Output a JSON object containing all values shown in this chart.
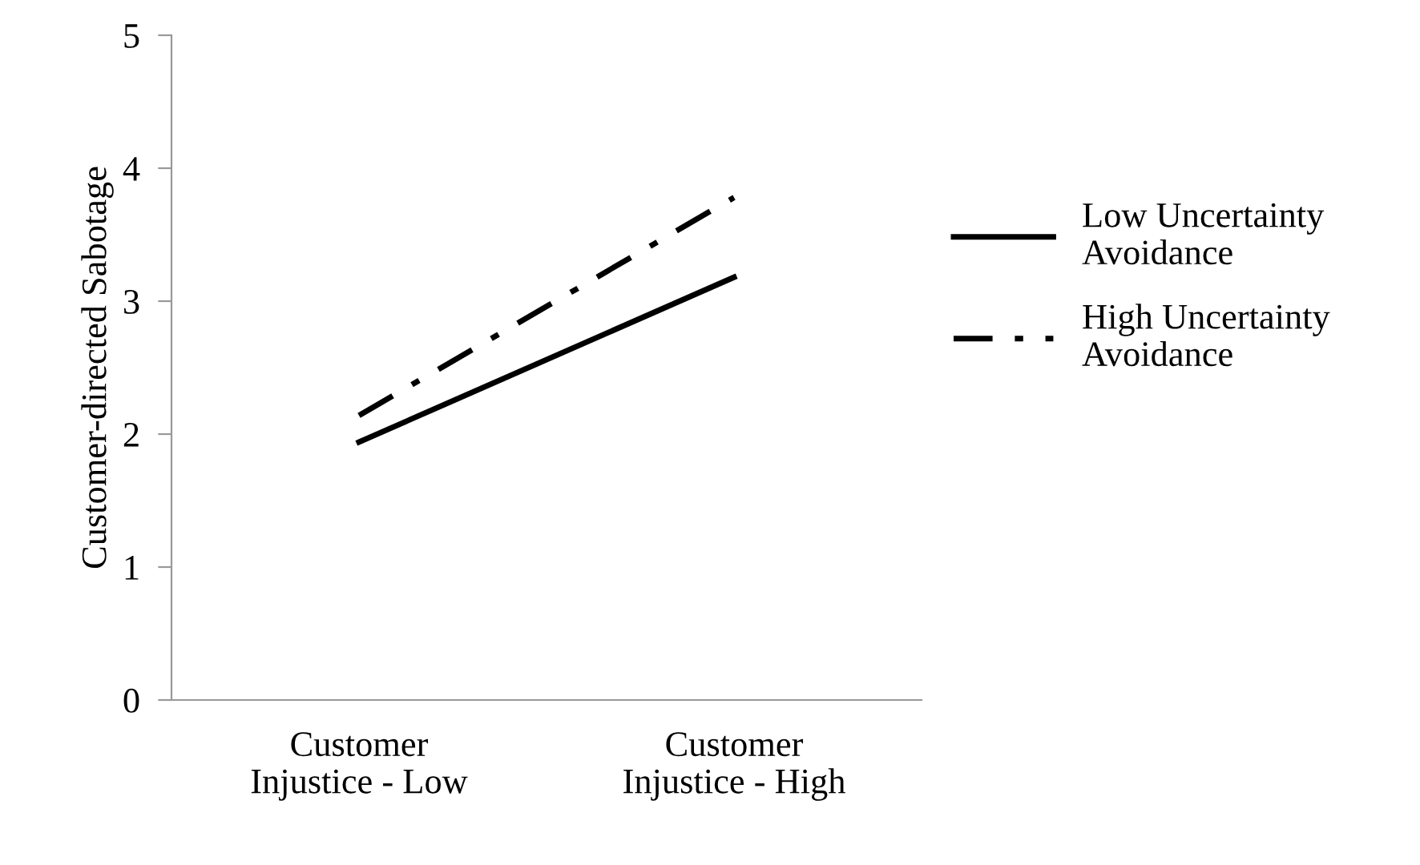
{
  "chart_data": {
    "type": "line",
    "ylabel": "Customer-directed Sabotage",
    "categories": [
      "Customer\nInjustice - Low",
      "Customer\nInjustice - High"
    ],
    "series": [
      {
        "name": "Low Uncertainty\nAvoidance",
        "color": "#000000",
        "values": [
          1.94,
          3.18
        ],
        "line_style": "solid"
      },
      {
        "name": "High Uncertainty\nAvoidance",
        "color": "#000000",
        "values": [
          2.14,
          3.78
        ],
        "line_style": "dashdot"
      }
    ],
    "ylim": [
      0,
      5
    ],
    "yticks": [
      0,
      1,
      2,
      3,
      4,
      5
    ],
    "grid": false,
    "legend": "right",
    "marker": "none"
  }
}
